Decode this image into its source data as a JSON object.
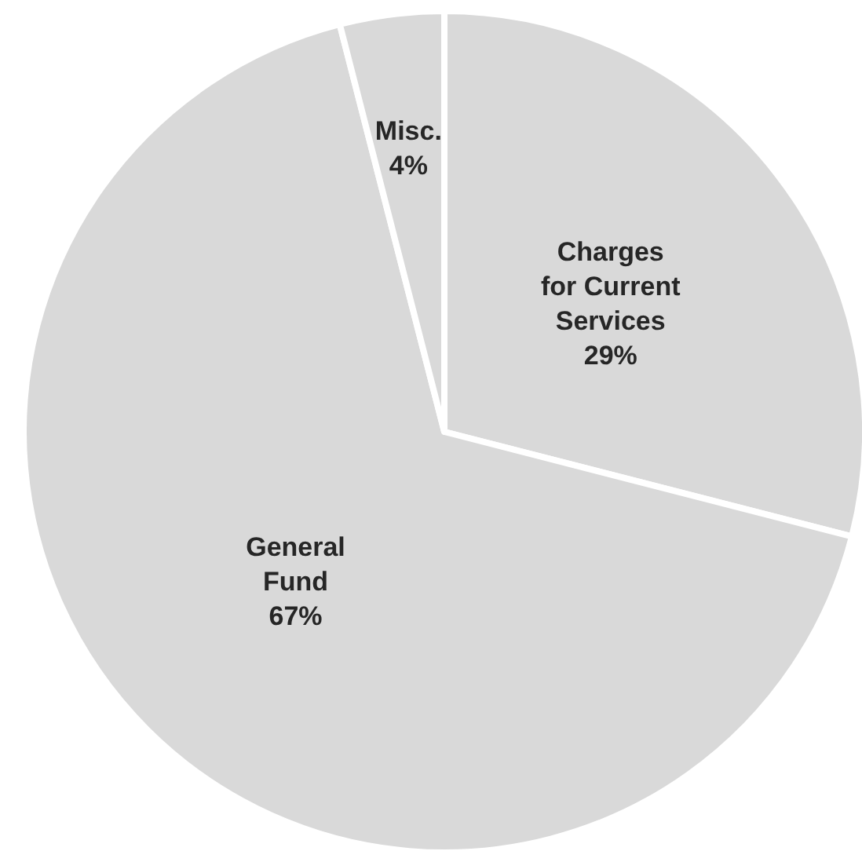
{
  "chart_data": {
    "type": "pie",
    "categories": [
      "Charges for Current Services",
      "General Fund",
      "Misc."
    ],
    "values": [
      29,
      67,
      4
    ],
    "value_labels": [
      "29%",
      "67%",
      "4%"
    ],
    "colors": [
      "#d9d9d9",
      "#d9d9d9",
      "#d9d9d9"
    ]
  }
}
